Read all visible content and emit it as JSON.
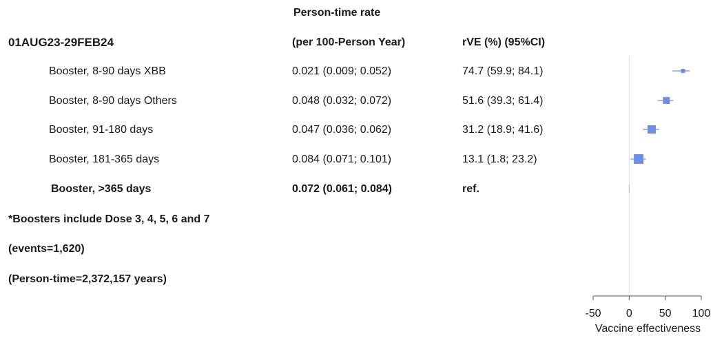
{
  "header": {
    "period": "01AUG23-29FEB24",
    "rate_line1": "Person-time rate",
    "rate_line2": "(per 100-Person Year)",
    "rve_header": "rVE (%)  (95%CI)"
  },
  "rows": [
    {
      "label": "Booster, 8-90 days XBB",
      "rate": "0.021 (0.009; 0.052)",
      "rve": "74.7 (59.9; 84.1)",
      "bold": false
    },
    {
      "label": "Booster, 8-90 days Others",
      "rate": "0.048 (0.032; 0.072)",
      "rve": "51.6 (39.3; 61.4)",
      "bold": false
    },
    {
      "label": "Booster, 91-180 days",
      "rate": "0.047 (0.036; 0.062)",
      "rve": "31.2 (18.9; 41.6)",
      "bold": false
    },
    {
      "label": "Booster,  181-365 days",
      "rate": "0.084 (0.071; 0.101)",
      "rve": "13.1 (1.8; 23.2)",
      "bold": false
    },
    {
      "label": "Booster,  >365 days",
      "rate": "0.072 (0.061; 0.084)",
      "rve": "ref.",
      "bold": true
    }
  ],
  "footnotes": {
    "boosters": "*Boosters include Dose 3, 4, 5, 6 and 7",
    "events": "(events=1,620)",
    "person_time": "(Person-time=2,372,157 years)"
  },
  "colors": {
    "marker": "#6f8ee8",
    "ci_line": "#8aa4ec",
    "axis": "#555555",
    "ref_line": "#dddddd"
  },
  "chart_data": {
    "type": "forest",
    "xlabel": "Vaccine effectiveness",
    "xlim": [
      -50,
      100
    ],
    "xticks": [
      -50,
      0,
      50,
      100
    ],
    "reference_value": 0,
    "points": [
      {
        "name": "Booster, 8-90 days XBB",
        "value": 74.7,
        "lower": 59.9,
        "upper": 84.1,
        "weight": 0.2
      },
      {
        "name": "Booster, 8-90 days Others",
        "value": 51.6,
        "lower": 39.3,
        "upper": 61.4,
        "weight": 0.6
      },
      {
        "name": "Booster, 91-180 days",
        "value": 31.2,
        "lower": 18.9,
        "upper": 41.6,
        "weight": 0.8
      },
      {
        "name": "Booster,  181-365 days",
        "value": 13.1,
        "lower": 1.8,
        "upper": 23.2,
        "weight": 1.0
      },
      {
        "name": "Booster,  >365 days",
        "value": 0,
        "lower": 0,
        "upper": 0,
        "weight": 0
      }
    ]
  }
}
